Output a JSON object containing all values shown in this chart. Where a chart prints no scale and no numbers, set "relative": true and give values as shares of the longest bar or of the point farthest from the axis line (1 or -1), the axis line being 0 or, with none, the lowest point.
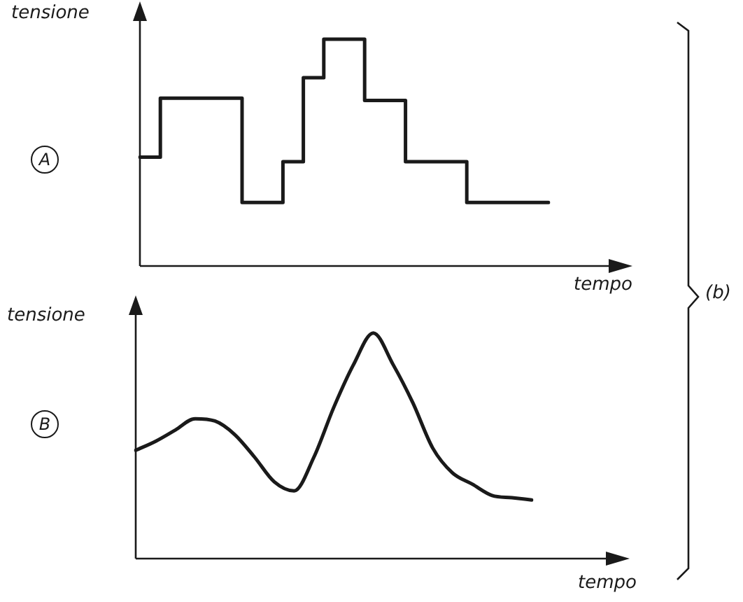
{
  "chart_data": [
    {
      "type": "step",
      "ylabel": "tensione",
      "xlabel": "tempo",
      "annotations": [
        "A",
        "(b)"
      ],
      "relative": true,
      "color": "#1a1a1a",
      "categories": [
        null,
        null,
        null,
        null,
        null,
        null,
        null,
        null,
        null,
        null,
        null,
        null,
        null,
        null,
        null,
        null,
        null,
        null,
        null,
        null,
        null
      ],
      "values": [
        0.48,
        0.48,
        0.74,
        0.74,
        0.74,
        0.74,
        0.28,
        0.28,
        0.46,
        0.83,
        1,
        1,
        0.73,
        0.73,
        0.46,
        0.46,
        0.46,
        0.28,
        0.28,
        0.28,
        0.28
      ]
    },
    {
      "type": "line",
      "ylabel": "tensione",
      "xlabel": "tempo",
      "annotations": [
        "B"
      ],
      "relative": true,
      "color": "#1a1a1a",
      "categories": [
        null,
        null,
        null,
        null,
        null,
        null,
        null,
        null,
        null,
        null,
        null,
        null,
        null,
        null,
        null,
        null,
        null,
        null,
        null,
        null,
        null
      ],
      "values": [
        0.48,
        0.52,
        0.57,
        0.62,
        0.61,
        0.55,
        0.45,
        0.34,
        0.3,
        0.45,
        0.67,
        0.86,
        1,
        0.86,
        0.69,
        0.49,
        0.38,
        0.33,
        0.28,
        0.27,
        0.26
      ]
    }
  ]
}
